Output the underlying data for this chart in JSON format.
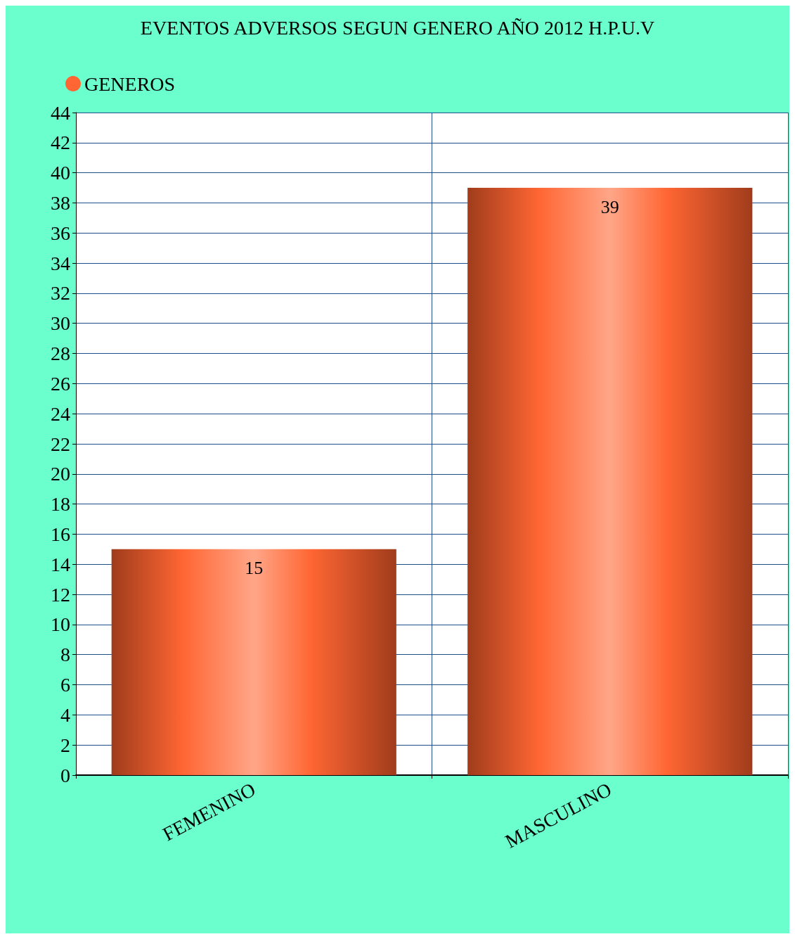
{
  "chart_data": {
    "type": "bar",
    "title": "EVENTOS ADVERSOS SEGUN GENERO AÑO 2012 H.P.U.V",
    "categories": [
      "FEMENINO",
      "MASCULINO"
    ],
    "series": [
      {
        "name": "GENEROS",
        "color": "#ff6633",
        "values": [
          15,
          39
        ]
      }
    ],
    "ylim": [
      0,
      44
    ],
    "yticks": [
      0,
      2,
      4,
      6,
      8,
      10,
      12,
      14,
      16,
      18,
      20,
      22,
      24,
      26,
      28,
      30,
      32,
      34,
      36,
      38,
      40,
      42,
      44
    ],
    "grid": true,
    "legend": "top left",
    "data_labels": true
  }
}
